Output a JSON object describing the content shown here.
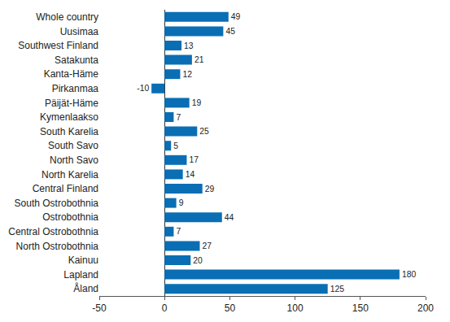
{
  "chart_data": {
    "type": "bar",
    "orientation": "horizontal",
    "categories": [
      "Whole country",
      "Uusimaa",
      "Southwest Finland",
      "Satakunta",
      "Kanta-Häme",
      "Pirkanmaa",
      "Päijät-Häme",
      "Kymenlaakso",
      "South Karelia",
      "South Savo",
      "North Savo",
      "North Karelia",
      "Central Finland",
      "South Ostrobothnia",
      "Ostrobothnia",
      "Central Ostrobothnia",
      "North Ostrobothnia",
      "Kainuu",
      "Lapland",
      "Åland"
    ],
    "values": [
      49,
      45,
      13,
      21,
      12,
      -10,
      19,
      7,
      25,
      5,
      17,
      14,
      29,
      9,
      44,
      7,
      27,
      20,
      180,
      125
    ],
    "color": "#0a6eb4",
    "xlim": [
      -50,
      200
    ],
    "xticks": [
      -50,
      0,
      50,
      100,
      150,
      200
    ],
    "grid": false,
    "data_labels": true
  }
}
